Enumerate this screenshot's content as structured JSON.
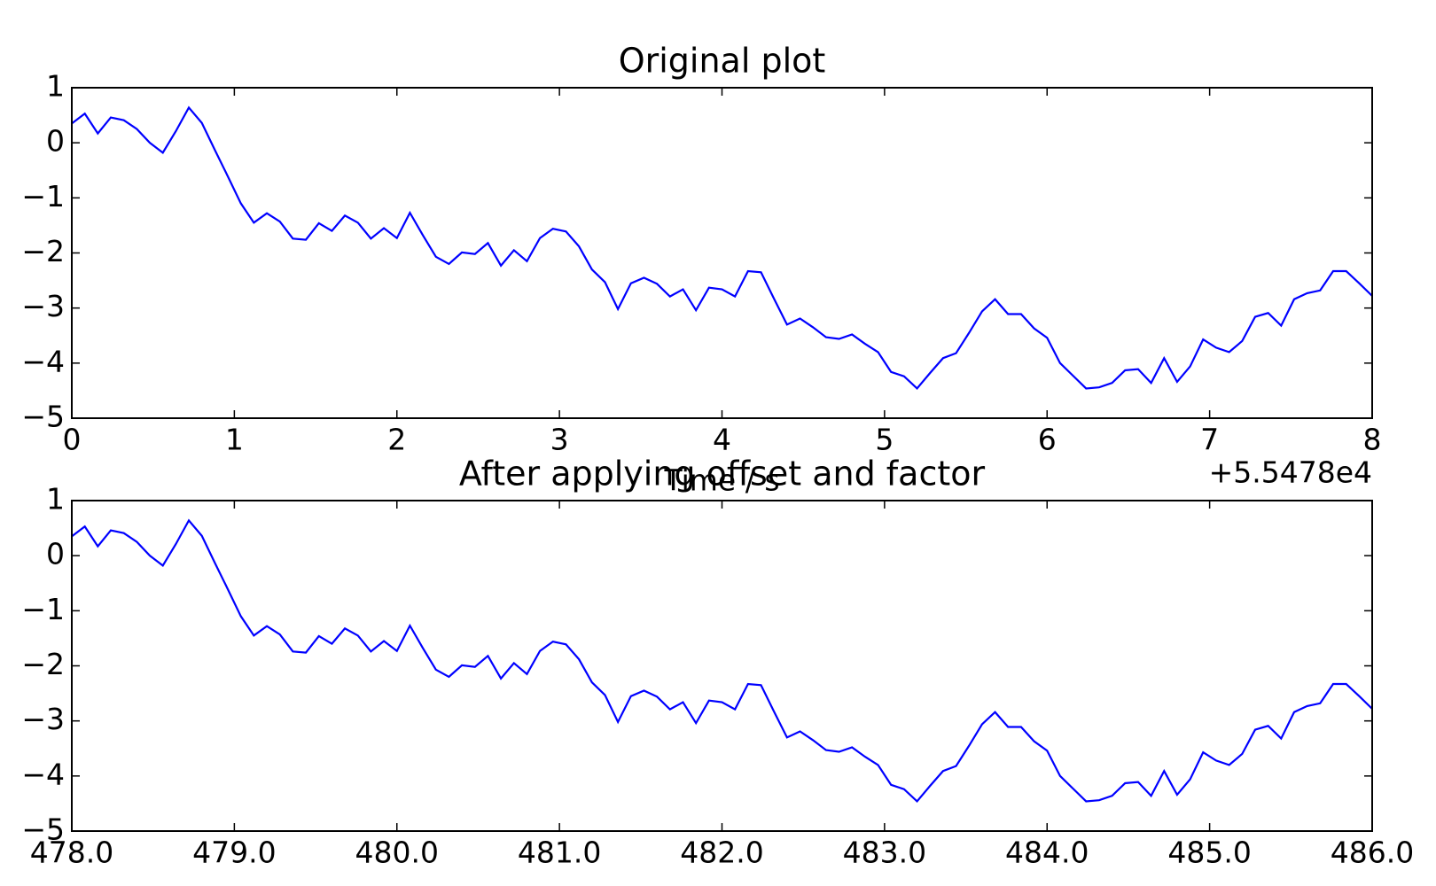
{
  "chart_data": [
    {
      "type": "line",
      "title": "Original plot",
      "xlabel": "Time / s",
      "offset_text": "+5.5478e4",
      "xlim": [
        0,
        8
      ],
      "xticks": [
        0,
        1,
        2,
        3,
        4,
        5,
        6,
        7,
        8
      ],
      "ylim": [
        -5,
        1
      ],
      "yticks": [
        {
          "value": -5,
          "label": "−5"
        },
        {
          "value": -4,
          "label": "−4"
        },
        {
          "value": -3,
          "label": "−3"
        },
        {
          "value": -2,
          "label": "−2"
        },
        {
          "value": -1,
          "label": "−1"
        },
        0,
        1
      ],
      "x": [
        0,
        0.08,
        0.16,
        0.24,
        0.32,
        0.4,
        0.48,
        0.56,
        0.64,
        0.72,
        0.8,
        0.88,
        0.96,
        1.04,
        1.12,
        1.2,
        1.28,
        1.36,
        1.44,
        1.52,
        1.6,
        1.68,
        1.76,
        1.84,
        1.92,
        2,
        2.08,
        2.16,
        2.24,
        2.32,
        2.4,
        2.48,
        2.56,
        2.64,
        2.72,
        2.8,
        2.88,
        2.96,
        3.04,
        3.12,
        3.2,
        3.28,
        3.36,
        3.44,
        3.52,
        3.6,
        3.68,
        3.76,
        3.84,
        3.92,
        4,
        4.08,
        4.16,
        4.24,
        4.32,
        4.4,
        4.48,
        4.56,
        4.64,
        4.72,
        4.8,
        4.88,
        4.96,
        5.04,
        5.12,
        5.2,
        5.28,
        5.36,
        5.44,
        5.52,
        5.6,
        5.68,
        5.76,
        5.84,
        5.92,
        6,
        6.08,
        6.16,
        6.24,
        6.32,
        6.4,
        6.48,
        6.56,
        6.64,
        6.72,
        6.8,
        6.88,
        6.96,
        7.04,
        7.12,
        7.2,
        7.28,
        7.36,
        7.44,
        7.52,
        7.6,
        7.68,
        7.76,
        7.84,
        7.92,
        8
      ],
      "series": [
        {
          "color": "#0000ff",
          "values": [
            0.35,
            0.53,
            0.17,
            0.46,
            0.41,
            0.25,
            0.0,
            -0.18,
            0.21,
            0.64,
            0.36,
            -0.13,
            -0.61,
            -1.1,
            -1.45,
            -1.28,
            -1.43,
            -1.74,
            -1.76,
            -1.46,
            -1.6,
            -1.32,
            -1.45,
            -1.74,
            -1.55,
            -1.73,
            -1.27,
            -1.68,
            -2.07,
            -2.2,
            -1.99,
            -2.02,
            -1.82,
            -2.23,
            -1.95,
            -2.15,
            -1.73,
            -1.56,
            -1.61,
            -1.88,
            -2.3,
            -2.53,
            -3.02,
            -2.55,
            -2.45,
            -2.56,
            -2.79,
            -2.66,
            -3.04,
            -2.63,
            -2.66,
            -2.79,
            -2.33,
            -2.35,
            -2.83,
            -3.3,
            -3.19,
            -3.35,
            -3.53,
            -3.56,
            -3.48,
            -3.65,
            -3.8,
            -4.16,
            -4.24,
            -4.46,
            -4.18,
            -3.91,
            -3.82,
            -3.45,
            -3.06,
            -2.84,
            -3.11,
            -3.11,
            -3.37,
            -3.54,
            -4.0,
            -4.23,
            -4.46,
            -4.44,
            -4.36,
            -4.13,
            -4.11,
            -4.36,
            -3.91,
            -4.34,
            -4.06,
            -3.57,
            -3.72,
            -3.8,
            -3.6,
            -3.16,
            -3.09,
            -3.32,
            -2.84,
            -2.73,
            -2.68,
            -2.33,
            -2.33,
            -2.55,
            -2.78
          ]
        }
      ]
    },
    {
      "type": "line",
      "title": "After applying offset and factor",
      "xlim": [
        478,
        486
      ],
      "xticks": [
        {
          "value": 478,
          "label": "478.0"
        },
        {
          "value": 479,
          "label": "479.0"
        },
        {
          "value": 480,
          "label": "480.0"
        },
        {
          "value": 481,
          "label": "481.0"
        },
        {
          "value": 482,
          "label": "482.0"
        },
        {
          "value": 483,
          "label": "483.0"
        },
        {
          "value": 484,
          "label": "484.0"
        },
        {
          "value": 485,
          "label": "485.0"
        },
        {
          "value": 486,
          "label": "486.0"
        }
      ],
      "ylim": [
        -5,
        1
      ],
      "yticks": [
        {
          "value": -5,
          "label": "−5"
        },
        {
          "value": -4,
          "label": "−4"
        },
        {
          "value": -3,
          "label": "−3"
        },
        {
          "value": -2,
          "label": "−2"
        },
        {
          "value": -1,
          "label": "−1"
        },
        0,
        1
      ],
      "x": [
        478,
        478.08,
        478.16,
        478.24,
        478.32,
        478.4,
        478.48,
        478.56,
        478.64,
        478.72,
        478.8,
        478.88,
        478.96,
        479.04,
        479.12,
        479.2,
        479.28,
        479.36,
        479.44,
        479.52,
        479.6,
        479.68,
        479.76,
        479.84,
        479.92,
        480,
        480.08,
        480.16,
        480.24,
        480.32,
        480.4,
        480.48,
        480.56,
        480.64,
        480.72,
        480.8,
        480.88,
        480.96,
        481.04,
        481.12,
        481.2,
        481.28,
        481.36,
        481.44,
        481.52,
        481.6,
        481.68,
        481.76,
        481.84,
        481.92,
        482,
        482.08,
        482.16,
        482.24,
        482.32,
        482.4,
        482.48,
        482.56,
        482.64,
        482.72,
        482.8,
        482.88,
        482.96,
        483.04,
        483.12,
        483.2,
        483.28,
        483.36,
        483.44,
        483.52,
        483.6,
        483.68,
        483.76,
        483.84,
        483.92,
        484,
        484.08,
        484.16,
        484.24,
        484.32,
        484.4,
        484.48,
        484.56,
        484.64,
        484.72,
        484.8,
        484.88,
        484.96,
        485.04,
        485.12,
        485.2,
        485.28,
        485.36,
        485.44,
        485.52,
        485.6,
        485.68,
        485.76,
        485.84,
        485.92,
        486
      ],
      "series": [
        {
          "color": "#0000ff",
          "values": [
            0.35,
            0.53,
            0.17,
            0.46,
            0.41,
            0.25,
            0.0,
            -0.18,
            0.21,
            0.64,
            0.36,
            -0.13,
            -0.61,
            -1.1,
            -1.45,
            -1.28,
            -1.43,
            -1.74,
            -1.76,
            -1.46,
            -1.6,
            -1.32,
            -1.45,
            -1.74,
            -1.55,
            -1.73,
            -1.27,
            -1.68,
            -2.07,
            -2.2,
            -1.99,
            -2.02,
            -1.82,
            -2.23,
            -1.95,
            -2.15,
            -1.73,
            -1.56,
            -1.61,
            -1.88,
            -2.3,
            -2.53,
            -3.02,
            -2.55,
            -2.45,
            -2.56,
            -2.79,
            -2.66,
            -3.04,
            -2.63,
            -2.66,
            -2.79,
            -2.33,
            -2.35,
            -2.83,
            -3.3,
            -3.19,
            -3.35,
            -3.53,
            -3.56,
            -3.48,
            -3.65,
            -3.8,
            -4.16,
            -4.24,
            -4.46,
            -4.18,
            -3.91,
            -3.82,
            -3.45,
            -3.06,
            -2.84,
            -3.11,
            -3.11,
            -3.37,
            -3.54,
            -4.0,
            -4.23,
            -4.46,
            -4.44,
            -4.36,
            -4.13,
            -4.11,
            -4.36,
            -3.91,
            -4.34,
            -4.06,
            -3.57,
            -3.72,
            -3.8,
            -3.6,
            -3.16,
            -3.09,
            -3.32,
            -2.84,
            -2.73,
            -2.68,
            -2.33,
            -2.33,
            -2.55,
            -2.78
          ]
        }
      ]
    }
  ]
}
